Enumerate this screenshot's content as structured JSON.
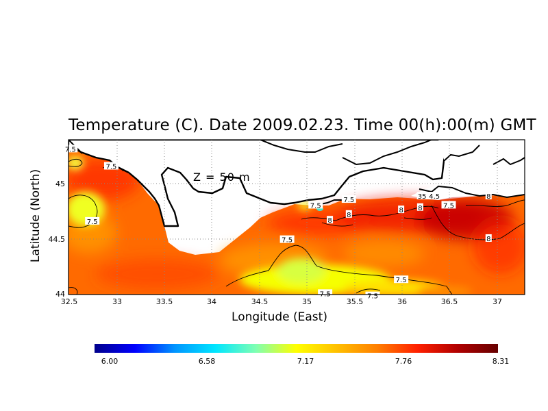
{
  "title": "Temperature (C). Date 2009.02.23. Time 00(h):00(m) GMT",
  "depth_label": "Z  =  50  m",
  "x_axis": {
    "label": "Longitude (East)",
    "ticks": [
      "32.5",
      "33",
      "33.5",
      "34",
      "34.5",
      "35",
      "35.5",
      "36",
      "36.5",
      "37"
    ],
    "range": [
      32.5,
      37.3
    ]
  },
  "y_axis": {
    "label": "Latitude (North)",
    "ticks": [
      "44",
      "44.5",
      "45"
    ],
    "range": [
      44.0,
      45.35
    ]
  },
  "grid": "dotted",
  "colorbar": {
    "min": 6.0,
    "max": 8.31,
    "labels": [
      "6.00",
      "6.58",
      "7.17",
      "7.76",
      "8.31"
    ],
    "palette": [
      "#00008b",
      "#0000ff",
      "#0096ff",
      "#00e6ff",
      "#7fffb2",
      "#ffff00",
      "#ffc000",
      "#ff7f00",
      "#ff2000",
      "#b00000",
      "#660000"
    ]
  },
  "contour_labels": [
    {
      "text": "7.5",
      "lon": 32.52,
      "lat": 45.27
    },
    {
      "text": "7.5",
      "lon": 32.95,
      "lat": 45.12
    },
    {
      "text": "7.5",
      "lon": 32.75,
      "lat": 44.64
    },
    {
      "text": "7.5",
      "lon": 34.8,
      "lat": 44.48
    },
    {
      "text": "7.5",
      "lon": 35.45,
      "lat": 44.83
    },
    {
      "text": "7.5",
      "lon": 35.1,
      "lat": 44.78
    },
    {
      "text": "8",
      "lon": 35.25,
      "lat": 44.65
    },
    {
      "text": "8",
      "lon": 35.45,
      "lat": 44.7
    },
    {
      "text": "8",
      "lon": 36.0,
      "lat": 44.74
    },
    {
      "text": "8",
      "lon": 36.2,
      "lat": 44.76
    },
    {
      "text": "35",
      "lon": 36.22,
      "lat": 44.86
    },
    {
      "text": "4.5",
      "lon": 36.35,
      "lat": 44.86
    },
    {
      "text": "7.5",
      "lon": 36.5,
      "lat": 44.78
    },
    {
      "text": "8",
      "lon": 36.92,
      "lat": 44.86
    },
    {
      "text": "8",
      "lon": 36.92,
      "lat": 44.49
    },
    {
      "text": "7.5",
      "lon": 36.0,
      "lat": 44.13
    },
    {
      "text": "7.5",
      "lon": 35.2,
      "lat": 44.01
    },
    {
      "text": "7.5",
      "lon": 35.7,
      "lat": 43.99
    }
  ]
}
